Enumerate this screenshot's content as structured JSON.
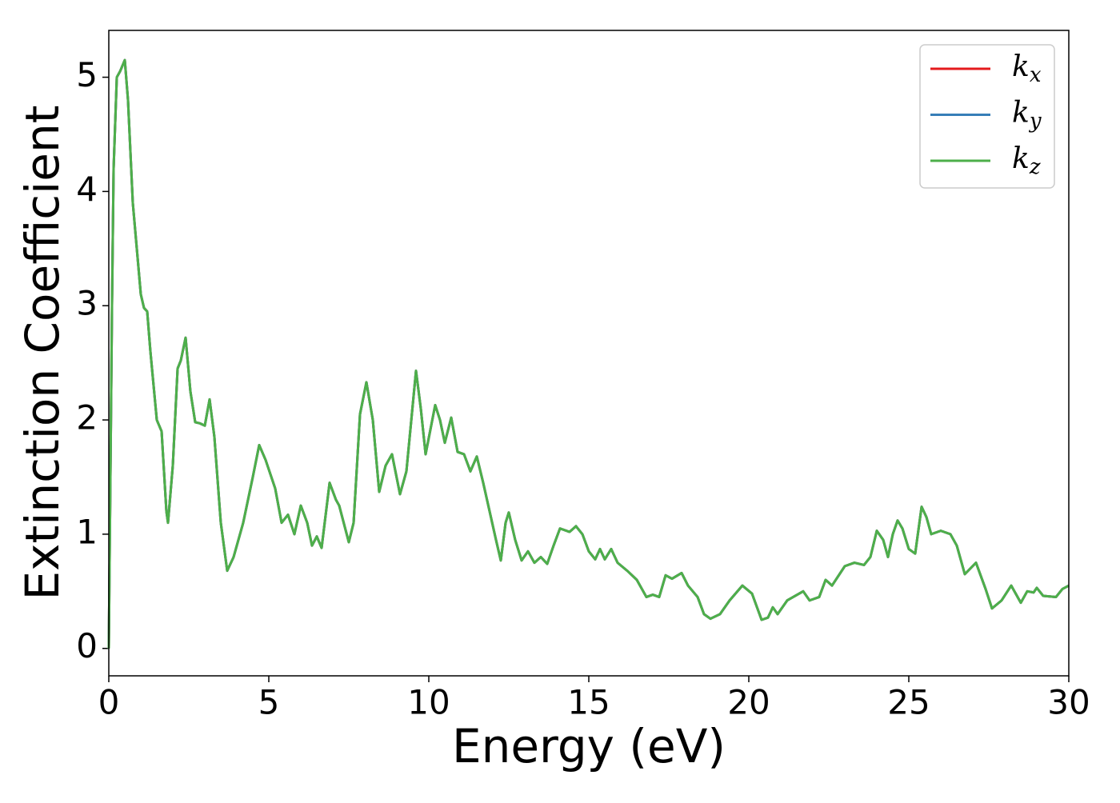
{
  "chart_data": {
    "type": "line",
    "xlabel": "Energy (eV)",
    "ylabel": "Extinction Coefficient",
    "x": [
      0,
      0.05,
      0.1,
      0.15,
      0.25,
      0.35,
      0.5,
      0.6,
      0.75,
      1.0,
      1.1,
      1.2,
      1.3,
      1.5,
      1.65,
      1.8,
      1.85,
      2.0,
      2.15,
      2.25,
      2.4,
      2.55,
      2.7,
      2.85,
      3.0,
      3.15,
      3.3,
      3.5,
      3.7,
      3.9,
      4.2,
      4.5,
      4.7,
      4.9,
      5.2,
      5.4,
      5.6,
      5.8,
      6.0,
      6.2,
      6.35,
      6.5,
      6.65,
      6.9,
      7.1,
      7.2,
      7.5,
      7.65,
      7.85,
      8.05,
      8.25,
      8.45,
      8.65,
      8.85,
      9.1,
      9.3,
      9.6,
      9.75,
      9.9,
      10.2,
      10.35,
      10.5,
      10.7,
      10.9,
      11.1,
      11.3,
      11.5,
      11.7,
      11.9,
      12.1,
      12.25,
      12.4,
      12.5,
      12.7,
      12.9,
      13.1,
      13.3,
      13.5,
      13.7,
      13.9,
      14.1,
      14.4,
      14.6,
      14.8,
      15.0,
      15.2,
      15.35,
      15.5,
      15.7,
      15.9,
      16.2,
      16.5,
      16.8,
      17.0,
      17.2,
      17.4,
      17.6,
      17.9,
      18.1,
      18.4,
      18.6,
      18.8,
      19.1,
      19.4,
      19.8,
      20.1,
      20.4,
      20.6,
      20.75,
      20.9,
      21.2,
      21.7,
      21.9,
      22.2,
      22.4,
      22.6,
      23.0,
      23.3,
      23.6,
      23.8,
      24.0,
      24.2,
      24.35,
      24.5,
      24.65,
      24.8,
      25.0,
      25.2,
      25.4,
      25.55,
      25.7,
      26.0,
      26.3,
      26.5,
      26.75,
      27.1,
      27.4,
      27.6,
      27.9,
      28.2,
      28.5,
      28.7,
      28.9,
      29.0,
      29.2,
      29.6,
      29.8,
      30
    ],
    "series": [
      {
        "name": "kx",
        "color": "#e41a1c",
        "values": [
          0,
          1.5,
          3.0,
          4.2,
          5.0,
          5.05,
          5.15,
          4.8,
          3.9,
          3.1,
          2.98,
          2.95,
          2.6,
          2.0,
          1.9,
          1.2,
          1.1,
          1.6,
          2.45,
          2.52,
          2.72,
          2.25,
          1.98,
          1.97,
          1.95,
          2.18,
          1.85,
          1.1,
          0.68,
          0.8,
          1.1,
          1.5,
          1.78,
          1.65,
          1.4,
          1.1,
          1.17,
          1.0,
          1.25,
          1.1,
          0.9,
          0.98,
          0.88,
          1.45,
          1.3,
          1.25,
          0.93,
          1.1,
          2.05,
          2.33,
          2.0,
          1.37,
          1.6,
          1.7,
          1.35,
          1.55,
          2.43,
          2.1,
          1.7,
          2.13,
          2.0,
          1.8,
          2.02,
          1.72,
          1.7,
          1.55,
          1.68,
          1.45,
          1.2,
          0.95,
          0.77,
          1.1,
          1.19,
          0.95,
          0.77,
          0.85,
          0.75,
          0.8,
          0.74,
          0.9,
          1.05,
          1.02,
          1.07,
          1.0,
          0.85,
          0.78,
          0.87,
          0.78,
          0.87,
          0.75,
          0.68,
          0.6,
          0.45,
          0.47,
          0.45,
          0.64,
          0.61,
          0.66,
          0.55,
          0.45,
          0.3,
          0.26,
          0.3,
          0.42,
          0.55,
          0.48,
          0.25,
          0.27,
          0.36,
          0.3,
          0.42,
          0.5,
          0.42,
          0.45,
          0.6,
          0.55,
          0.72,
          0.75,
          0.73,
          0.8,
          1.03,
          0.95,
          0.8,
          1.0,
          1.12,
          1.05,
          0.87,
          0.83,
          1.24,
          1.15,
          1.0,
          1.03,
          1.0,
          0.9,
          0.65,
          0.75,
          0.52,
          0.35,
          0.42,
          0.55,
          0.4,
          0.5,
          0.49,
          0.53,
          0.46,
          0.45,
          0.52,
          0.55
        ]
      },
      {
        "name": "ky",
        "color": "#377eb8",
        "values": [
          0,
          1.5,
          3.0,
          4.2,
          5.0,
          5.05,
          5.15,
          4.8,
          3.9,
          3.1,
          2.98,
          2.95,
          2.6,
          2.0,
          1.9,
          1.2,
          1.1,
          1.6,
          2.45,
          2.52,
          2.72,
          2.25,
          1.98,
          1.97,
          1.95,
          2.18,
          1.85,
          1.1,
          0.68,
          0.8,
          1.1,
          1.5,
          1.78,
          1.65,
          1.4,
          1.1,
          1.17,
          1.0,
          1.25,
          1.1,
          0.9,
          0.98,
          0.88,
          1.45,
          1.3,
          1.25,
          0.93,
          1.1,
          2.05,
          2.33,
          2.0,
          1.37,
          1.6,
          1.7,
          1.35,
          1.55,
          2.43,
          2.1,
          1.7,
          2.13,
          2.0,
          1.8,
          2.02,
          1.72,
          1.7,
          1.55,
          1.68,
          1.45,
          1.2,
          0.95,
          0.77,
          1.1,
          1.19,
          0.95,
          0.77,
          0.85,
          0.75,
          0.8,
          0.74,
          0.9,
          1.05,
          1.02,
          1.07,
          1.0,
          0.85,
          0.78,
          0.87,
          0.78,
          0.87,
          0.75,
          0.68,
          0.6,
          0.45,
          0.47,
          0.45,
          0.64,
          0.61,
          0.66,
          0.55,
          0.45,
          0.3,
          0.26,
          0.3,
          0.42,
          0.55,
          0.48,
          0.25,
          0.27,
          0.36,
          0.3,
          0.42,
          0.5,
          0.42,
          0.45,
          0.6,
          0.55,
          0.72,
          0.75,
          0.73,
          0.8,
          1.03,
          0.95,
          0.8,
          1.0,
          1.12,
          1.05,
          0.87,
          0.83,
          1.24,
          1.15,
          1.0,
          1.03,
          1.0,
          0.9,
          0.65,
          0.75,
          0.52,
          0.35,
          0.42,
          0.55,
          0.4,
          0.5,
          0.49,
          0.53,
          0.46,
          0.45,
          0.52,
          0.55
        ]
      },
      {
        "name": "kz",
        "color": "#4daf4a",
        "values": [
          0,
          1.5,
          3.0,
          4.2,
          5.0,
          5.05,
          5.15,
          4.8,
          3.9,
          3.1,
          2.98,
          2.95,
          2.6,
          2.0,
          1.9,
          1.2,
          1.1,
          1.6,
          2.45,
          2.52,
          2.72,
          2.25,
          1.98,
          1.97,
          1.95,
          2.18,
          1.85,
          1.1,
          0.68,
          0.8,
          1.1,
          1.5,
          1.78,
          1.65,
          1.4,
          1.1,
          1.17,
          1.0,
          1.25,
          1.1,
          0.9,
          0.98,
          0.88,
          1.45,
          1.3,
          1.25,
          0.93,
          1.1,
          2.05,
          2.33,
          2.0,
          1.37,
          1.6,
          1.7,
          1.35,
          1.55,
          2.43,
          2.1,
          1.7,
          2.13,
          2.0,
          1.8,
          2.02,
          1.72,
          1.7,
          1.55,
          1.68,
          1.45,
          1.2,
          0.95,
          0.77,
          1.1,
          1.19,
          0.95,
          0.77,
          0.85,
          0.75,
          0.8,
          0.74,
          0.9,
          1.05,
          1.02,
          1.07,
          1.0,
          0.85,
          0.78,
          0.87,
          0.78,
          0.87,
          0.75,
          0.68,
          0.6,
          0.45,
          0.47,
          0.45,
          0.64,
          0.61,
          0.66,
          0.55,
          0.45,
          0.3,
          0.26,
          0.3,
          0.42,
          0.55,
          0.48,
          0.25,
          0.27,
          0.36,
          0.3,
          0.42,
          0.5,
          0.42,
          0.45,
          0.6,
          0.55,
          0.72,
          0.75,
          0.73,
          0.8,
          1.03,
          0.95,
          0.8,
          1.0,
          1.12,
          1.05,
          0.87,
          0.83,
          1.24,
          1.15,
          1.0,
          1.03,
          1.0,
          0.9,
          0.65,
          0.75,
          0.52,
          0.35,
          0.42,
          0.55,
          0.4,
          0.5,
          0.49,
          0.53,
          0.46,
          0.45,
          0.52,
          0.55
        ]
      }
    ],
    "xlim": [
      0,
      30
    ],
    "xticks": [
      0,
      5,
      10,
      15,
      20,
      25,
      30
    ],
    "ylim": [
      -0.24,
      5.41
    ],
    "yticks": [
      0,
      1,
      2,
      3,
      4,
      5
    ],
    "grid": false,
    "legend": "upper right"
  }
}
